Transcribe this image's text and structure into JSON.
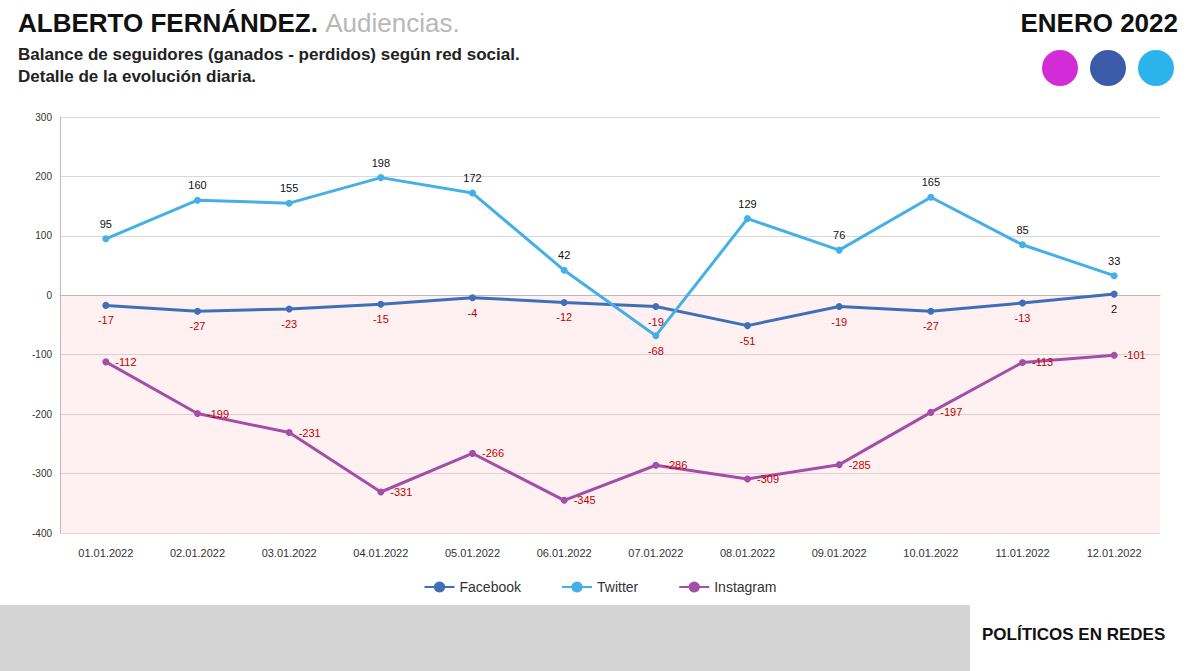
{
  "chart_data": {
    "type": "line",
    "title": "ALBERTO FERNÁNDEZ.",
    "subtitle": [
      "Balance de seguidores (ganados - perdidos) según red social.",
      "Detalle de la evolución diaria."
    ],
    "annotations": [
      "Audiencias.",
      "ENERO 2022",
      "POLÍTICOS EN REDES"
    ],
    "categories": [
      "01.01.2022",
      "02.01.2022",
      "03.01.2022",
      "04.01.2022",
      "05.01.2022",
      "06.01.2022",
      "07.01.2022",
      "08.01.2022",
      "09.01.2022",
      "10.01.2022",
      "11.01.2022",
      "12.01.2022"
    ],
    "series": [
      {
        "name": "Facebook",
        "color": "#3f6fb6",
        "values": [
          -17,
          -27,
          -23,
          -15,
          -4,
          -12,
          -19,
          -51,
          -19,
          -27,
          -13,
          2
        ]
      },
      {
        "name": "Twitter",
        "color": "#45b0e6",
        "values": [
          95,
          160,
          155,
          198,
          172,
          42,
          -68,
          129,
          76,
          165,
          85,
          33
        ]
      },
      {
        "name": "Instagram",
        "color": "#a34fa8",
        "values": [
          -112,
          -199,
          -231,
          -331,
          -266,
          -345,
          -286,
          -309,
          -285,
          -197,
          -113,
          -101
        ]
      }
    ],
    "ylim": [
      -400,
      300
    ],
    "yticks": [
      -400,
      -300,
      -200,
      -100,
      0,
      100,
      200,
      300
    ],
    "grid": true,
    "legend": "bottom",
    "data_labels": true,
    "marker": "circle"
  }
}
